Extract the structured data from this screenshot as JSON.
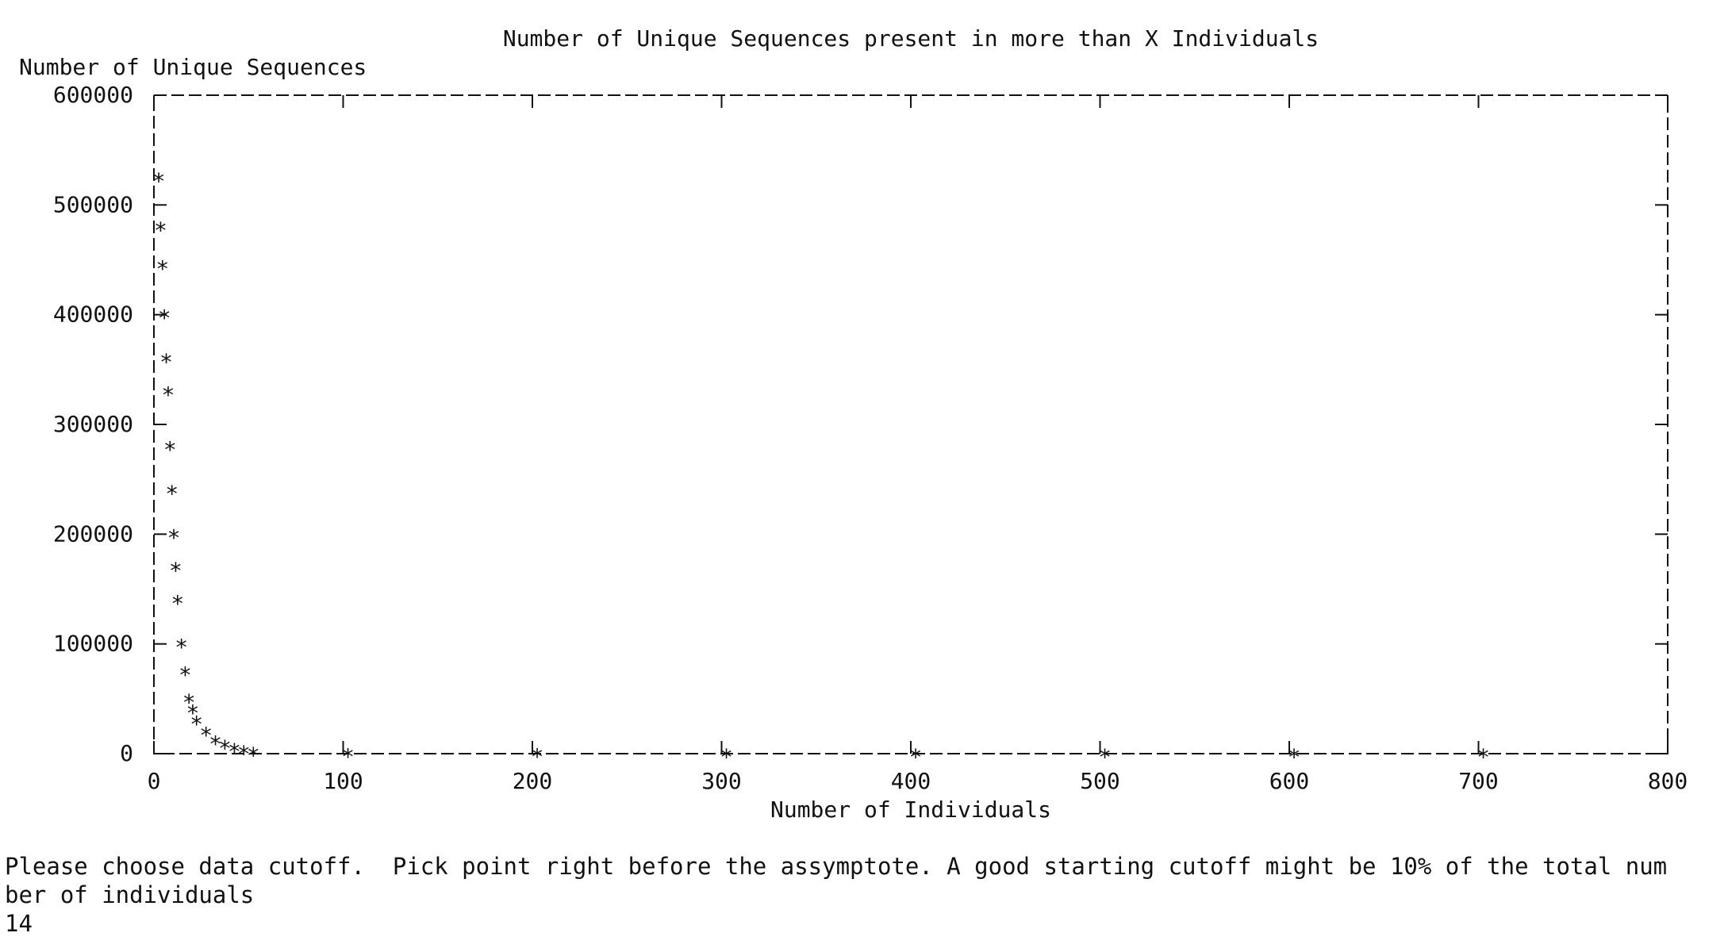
{
  "chart_data": {
    "type": "scatter",
    "title": "Number of Unique Sequences present in more than X Individuals",
    "ylabel": "Number of Unique Sequences",
    "xlabel": "Number of Individuals",
    "xlim": [
      0,
      800
    ],
    "ylim": [
      0,
      600000
    ],
    "xticks": [
      "0",
      "100",
      "200",
      "300",
      "400",
      "500",
      "600",
      "700",
      "800"
    ],
    "yticks": [
      "0",
      "100000",
      "200000",
      "300000",
      "400000",
      "500000",
      "600000"
    ],
    "grid": false,
    "x": [
      0,
      1,
      2,
      3,
      4,
      5,
      6,
      7,
      8,
      9,
      10,
      12,
      14,
      16,
      18,
      20,
      25,
      30,
      35,
      40,
      45,
      50,
      100,
      200,
      300,
      400,
      500,
      600,
      700
    ],
    "y": [
      525000,
      480000,
      445000,
      400000,
      360000,
      330000,
      280000,
      240000,
      200000,
      170000,
      140000,
      100000,
      75000,
      50000,
      40000,
      30000,
      20000,
      12000,
      8000,
      5000,
      3000,
      1500,
      500,
      200,
      100,
      50,
      20,
      10,
      5
    ],
    "marker_color": "#111111",
    "axis_color": "#111111"
  },
  "terminal": {
    "prompt_line1": "Please choose data cutoff.  Pick point right before the assymptote. A good starting cutoff might be 10% of the total num",
    "prompt_line2": "ber of individuals",
    "input_value": "14"
  }
}
